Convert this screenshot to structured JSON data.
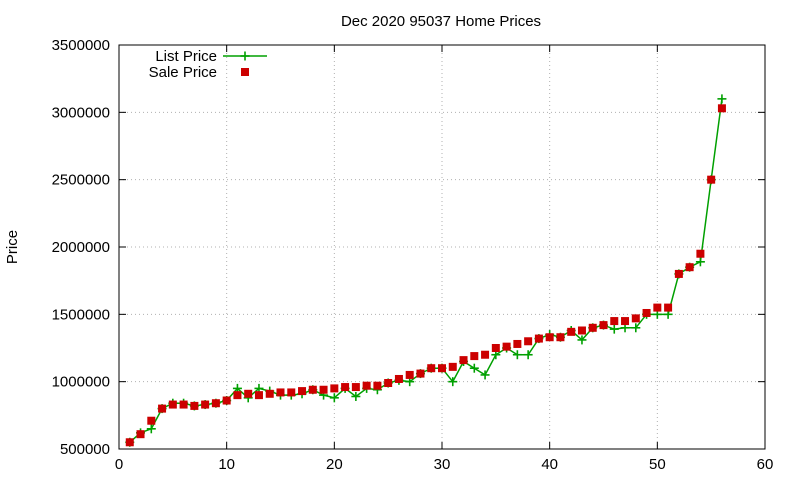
{
  "chart_data": {
    "type": "line",
    "title": "Dec 2020 95037 Home Prices",
    "xlabel": "",
    "ylabel": "Price",
    "xlim": [
      0,
      60
    ],
    "ylim": [
      500000,
      3500000
    ],
    "xticks": [
      0,
      10,
      20,
      30,
      40,
      50,
      60
    ],
    "yticks": [
      500000,
      1000000,
      1500000,
      2000000,
      2500000,
      3000000,
      3500000
    ],
    "xtick_labels": [
      "0",
      "10",
      "20",
      "30",
      "40",
      "50",
      "60"
    ],
    "ytick_labels": [
      "500000",
      "1000000",
      "1500000",
      "2000000",
      "2500000",
      "3000000",
      "3500000"
    ],
    "grid": true,
    "legend_position": "top-left",
    "x": [
      1,
      2,
      3,
      4,
      5,
      6,
      7,
      8,
      9,
      10,
      11,
      12,
      13,
      14,
      15,
      16,
      17,
      18,
      19,
      20,
      21,
      22,
      23,
      24,
      25,
      26,
      27,
      28,
      29,
      30,
      31,
      32,
      33,
      34,
      35,
      36,
      37,
      38,
      39,
      40,
      41,
      42,
      43,
      44,
      45,
      46,
      47,
      48,
      49,
      50,
      51,
      52,
      53,
      54,
      55,
      56
    ],
    "series": [
      {
        "name": "List Price",
        "color": "#00a000",
        "marker": "plus",
        "line": true,
        "values": [
          550000,
          620000,
          650000,
          800000,
          840000,
          840000,
          820000,
          830000,
          840000,
          860000,
          950000,
          880000,
          950000,
          930000,
          900000,
          900000,
          910000,
          940000,
          900000,
          880000,
          950000,
          890000,
          950000,
          940000,
          990000,
          1010000,
          1000000,
          1060000,
          1100000,
          1100000,
          1000000,
          1150000,
          1100000,
          1050000,
          1200000,
          1250000,
          1200000,
          1200000,
          1320000,
          1350000,
          1330000,
          1380000,
          1310000,
          1400000,
          1420000,
          1390000,
          1400000,
          1400000,
          1500000,
          1500000,
          1500000,
          1800000,
          1850000,
          1890000,
          2500000,
          3100000
        ]
      },
      {
        "name": "Sale Price",
        "color": "#cc0000",
        "marker": "square",
        "line": false,
        "values": [
          550000,
          610000,
          710000,
          800000,
          830000,
          830000,
          820000,
          830000,
          840000,
          860000,
          900000,
          910000,
          900000,
          910000,
          920000,
          920000,
          930000,
          940000,
          940000,
          950000,
          960000,
          960000,
          970000,
          970000,
          990000,
          1020000,
          1050000,
          1060000,
          1100000,
          1100000,
          1110000,
          1160000,
          1190000,
          1200000,
          1250000,
          1260000,
          1280000,
          1300000,
          1320000,
          1330000,
          1330000,
          1370000,
          1380000,
          1400000,
          1420000,
          1450000,
          1450000,
          1470000,
          1510000,
          1550000,
          1550000,
          1800000,
          1850000,
          1950000,
          2500000,
          3030000
        ]
      }
    ]
  }
}
